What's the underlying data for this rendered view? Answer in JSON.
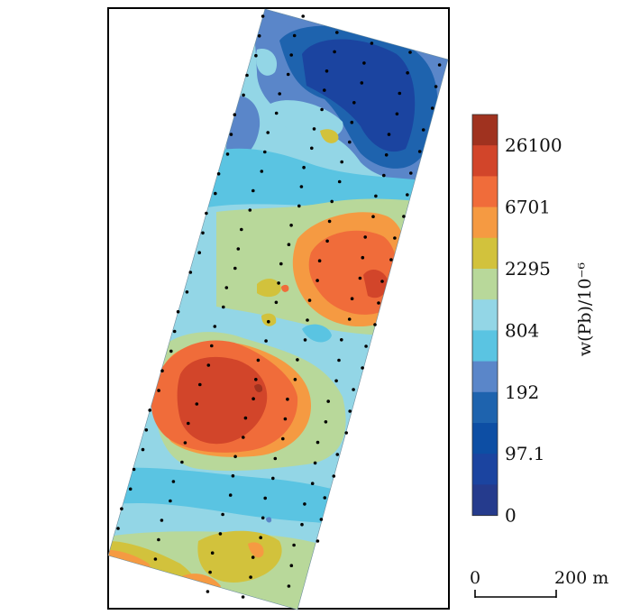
{
  "map": {
    "colors": {
      "deep_blue": "#1a3f9b",
      "mid_blue": "#5a86c9",
      "cyan": "#5ac4e2",
      "light_cyan": "#93d6e6",
      "pale_green": "#b8d89a",
      "olive": "#d2c23c",
      "orange_light": "#f59a42",
      "orange": "#f06c3a",
      "red_orange": "#d2452a",
      "dark_red": "#a0321f"
    }
  },
  "legend": {
    "title": "w(Pb)/10⁻⁶",
    "colors": [
      "#a0321f",
      "#d2452a",
      "#f06c3a",
      "#f59a42",
      "#d2c23c",
      "#b8d89a",
      "#93d6e6",
      "#5ac4e2",
      "#5a86c9",
      "#1e63ae",
      "#0d4ea4",
      "#1b44a0",
      "#253b8d"
    ],
    "labels": [
      "26100",
      "6701",
      "2295",
      "804",
      "192",
      "97.1",
      "0"
    ]
  },
  "scale": {
    "start": "0",
    "end": "200 m"
  }
}
